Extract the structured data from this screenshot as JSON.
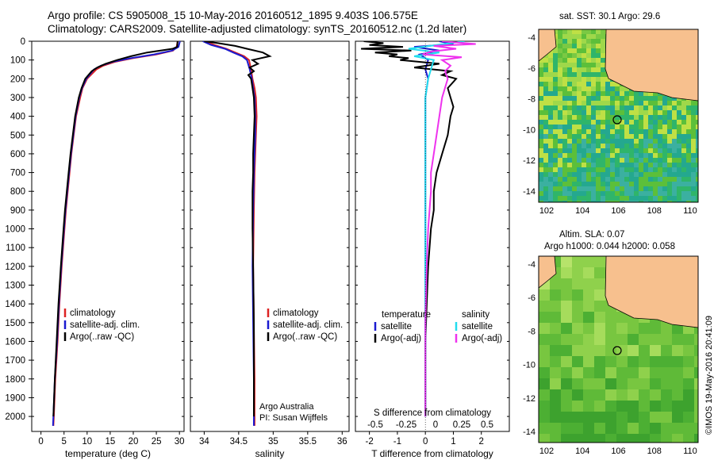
{
  "header": {
    "line1": "Argo profile: CS 5905008_15 10-May-2016 20160512_1895 9.403S 106.575E",
    "line2": "Climatology: CARS2009. Satellite-adjusted climatology: synTS_20160512.nc (1.2d later)"
  },
  "credit": "©IMOS 19-May-2016 20:41:09",
  "colors": {
    "climatology": "#dd2222",
    "satellite": "#1a1ad0",
    "argo": "#000000",
    "sat_salinity": "#22ddee",
    "argo_salinity_adj": "#ee33ee",
    "land": "#f7c08e"
  },
  "maps": {
    "sst": {
      "title": "sat. SST: 30.1  Argo: 29.6",
      "xticks": [
        "102",
        "104",
        "106",
        "108",
        "110"
      ],
      "yticks": [
        "-4",
        "-6",
        "-8",
        "-10",
        "-12",
        "-14"
      ]
    },
    "sla": {
      "title1": "Altim. SLA: 0.07",
      "title2": "Argo h1000: 0.044 h2000: 0.058",
      "xticks": [
        "102",
        "104",
        "106",
        "108",
        "110"
      ],
      "yticks": [
        "-4",
        "-6",
        "-8",
        "-10",
        "-12",
        "-14"
      ]
    }
  },
  "chart_data": [
    {
      "type": "line",
      "xlabel": "temperature (deg C)",
      "ylabel": "",
      "xlim": [
        -2,
        31
      ],
      "ylim": [
        2080,
        0
      ],
      "xticks": [
        0,
        5,
        10,
        15,
        20,
        25,
        30
      ],
      "yticks": [
        0,
        100,
        200,
        300,
        400,
        500,
        600,
        700,
        800,
        900,
        1000,
        1100,
        1200,
        1300,
        1400,
        1500,
        1600,
        1700,
        1800,
        1900,
        2000
      ],
      "legend": [
        "climatology",
        "satellite-adj. clim.",
        "Argo(..raw -QC)"
      ],
      "series": [
        {
          "name": "climatology",
          "key": "climatology",
          "depth": [
            0,
            30,
            50,
            70,
            90,
            110,
            130,
            150,
            200,
            250,
            300,
            400,
            500,
            600,
            700,
            800,
            900,
            1000,
            1200,
            1400,
            1600,
            1800,
            2000,
            2050
          ],
          "values": [
            29.6,
            29.4,
            28.6,
            25.0,
            20.0,
            16.0,
            13.5,
            12.0,
            10.0,
            9.0,
            8.5,
            7.6,
            7.1,
            6.6,
            6.2,
            5.8,
            5.4,
            5.1,
            4.5,
            4.0,
            3.6,
            3.1,
            2.8,
            2.7
          ]
        },
        {
          "name": "satellite-adj. clim.",
          "key": "satellite",
          "depth": [
            0,
            30,
            50,
            70,
            90,
            110,
            130,
            150,
            200,
            250,
            300,
            400,
            500,
            600,
            700,
            800,
            900,
            1000,
            1200,
            1400,
            1600,
            1800,
            2000,
            2050
          ],
          "values": [
            30.1,
            29.8,
            28.4,
            24.5,
            19.5,
            15.5,
            13.0,
            11.5,
            9.8,
            8.9,
            8.3,
            7.5,
            7.0,
            6.5,
            6.1,
            5.7,
            5.3,
            5.0,
            4.4,
            3.9,
            3.5,
            3.0,
            2.7,
            2.6
          ]
        },
        {
          "name": "Argo(..raw -QC)",
          "key": "argo",
          "depth": [
            0,
            30,
            40,
            60,
            80,
            100,
            120,
            140,
            160,
            200,
            250,
            300,
            400,
            500,
            600,
            700,
            800,
            900,
            1000,
            1200,
            1400,
            1600,
            1800,
            2000
          ],
          "values": [
            29.6,
            29.5,
            28.5,
            23.0,
            19.5,
            16.5,
            14.0,
            12.2,
            11.0,
            9.6,
            8.8,
            8.2,
            7.4,
            6.9,
            6.4,
            6.0,
            5.6,
            5.2,
            4.9,
            4.3,
            3.8,
            3.4,
            3.0,
            2.7
          ]
        }
      ]
    },
    {
      "type": "line",
      "xlabel": "salinity",
      "ylabel": "",
      "xlim": [
        33.8,
        36.1
      ],
      "ylim": [
        2080,
        0
      ],
      "xticks": [
        34,
        34.5,
        35,
        35.5,
        36
      ],
      "legend": [
        "climatology",
        "satellite-adj. clim.",
        "Argo(..raw -QC)"
      ],
      "annotations": [
        "Argo Australia",
        "PI: Susan Wijffels"
      ],
      "series": [
        {
          "name": "climatology",
          "key": "climatology",
          "depth": [
            0,
            20,
            40,
            60,
            80,
            100,
            150,
            200,
            250,
            300,
            400,
            500,
            700,
            900,
            1200,
            1500,
            1800,
            2050
          ],
          "values": [
            34.0,
            34.15,
            34.32,
            34.45,
            34.58,
            34.65,
            34.68,
            34.7,
            34.73,
            34.75,
            34.76,
            34.75,
            34.73,
            34.72,
            34.71,
            34.72,
            34.73,
            34.73
          ]
        },
        {
          "name": "satellite-adj. clim.",
          "key": "satellite",
          "depth": [
            0,
            20,
            40,
            60,
            80,
            100,
            150,
            200,
            250,
            300,
            400,
            500,
            700,
            900,
            1200,
            1500,
            1800,
            2050
          ],
          "values": [
            33.98,
            34.1,
            34.3,
            34.42,
            34.55,
            34.62,
            34.66,
            34.69,
            34.71,
            34.73,
            34.74,
            34.74,
            34.72,
            34.71,
            34.7,
            34.71,
            34.72,
            34.72
          ]
        },
        {
          "name": "Argo(..raw -QC)",
          "key": "argo",
          "depth": [
            0,
            10,
            25,
            40,
            60,
            80,
            100,
            120,
            140,
            160,
            180,
            200,
            250,
            300,
            400,
            500,
            600,
            700,
            800,
            1000,
            1200,
            1500,
            1800,
            2000
          ],
          "values": [
            34.0,
            34.2,
            34.45,
            34.62,
            34.85,
            34.95,
            34.7,
            34.78,
            34.66,
            34.72,
            34.64,
            34.68,
            34.7,
            34.72,
            34.73,
            34.72,
            34.71,
            34.71,
            34.7,
            34.7,
            34.71,
            34.72,
            34.72,
            34.72
          ]
        }
      ]
    },
    {
      "type": "line",
      "xlabel": "T difference from climatology",
      "xlabel_top": "S difference from climatology",
      "xlim": [
        -2.5,
        3
      ],
      "ylim": [
        2080,
        0
      ],
      "xticks": [
        -2,
        -1,
        0,
        1,
        2
      ],
      "xticks_top": [
        "-0.5",
        "-0.25",
        "0",
        "0.25",
        "0.5"
      ],
      "legend": {
        "temperature_heading": "temperature",
        "salinity_heading": "salinity",
        "items": [
          "satellite",
          "Argo(-adj)",
          "satellite",
          "Argo(-adj)"
        ]
      },
      "series": [
        {
          "name": "satellite",
          "key": "satellite",
          "depth": [
            0,
            15,
            30,
            50,
            70,
            100,
            150,
            200,
            300,
            400,
            600,
            800,
            1000,
            1500,
            2000
          ],
          "values": [
            0.5,
            1.0,
            -0.4,
            0.5,
            -0.2,
            0.1,
            0.0,
            0.1,
            0.0,
            0.0,
            0.0,
            0.0,
            0.0,
            0.0,
            0.0
          ]
        },
        {
          "name": "Argo(-adj)",
          "key": "argo",
          "depth": [
            0,
            10,
            20,
            30,
            40,
            50,
            60,
            70,
            80,
            90,
            100,
            120,
            140,
            160,
            180,
            200,
            250,
            300,
            350,
            400,
            500,
            600,
            700,
            800,
            900,
            1000,
            1200,
            1400,
            1600,
            1800,
            2000
          ],
          "values": [
            -2.2,
            -1.5,
            -2.0,
            -0.8,
            -2.3,
            -0.5,
            -1.8,
            -1.0,
            -1.3,
            -0.6,
            -0.9,
            0.5,
            -0.4,
            0.9,
            0.6,
            1.1,
            0.8,
            0.9,
            1.0,
            0.9,
            0.8,
            0.6,
            0.4,
            0.3,
            0.3,
            0.2,
            0.1,
            0.05,
            0.0,
            0.0,
            0.0
          ]
        },
        {
          "name": "satellite",
          "key": "sat_salinity",
          "depth": [
            0,
            20,
            40,
            60,
            80,
            100,
            150,
            200,
            300,
            400,
            600,
            800,
            1000,
            1500,
            2000
          ],
          "values": [
            1.4,
            0.4,
            -0.6,
            0.5,
            -0.4,
            0.3,
            0.2,
            0.1,
            0.0,
            0.0,
            0.0,
            0.0,
            0.0,
            0.0,
            0.0
          ]
        },
        {
          "name": "Argo(-adj)",
          "key": "argo_salinity_adj",
          "depth": [
            0,
            15,
            25,
            40,
            55,
            70,
            85,
            100,
            130,
            160,
            200,
            300,
            400,
            500,
            600,
            700,
            800,
            1000,
            1200,
            1500,
            1800,
            2000
          ],
          "values": [
            0.6,
            1.8,
            0.3,
            1.1,
            0.2,
            -0.1,
            1.3,
            0.6,
            0.9,
            0.7,
            0.8,
            0.6,
            0.5,
            0.4,
            0.3,
            0.2,
            0.2,
            0.1,
            0.05,
            0.0,
            0.0,
            0.0
          ]
        }
      ]
    }
  ]
}
